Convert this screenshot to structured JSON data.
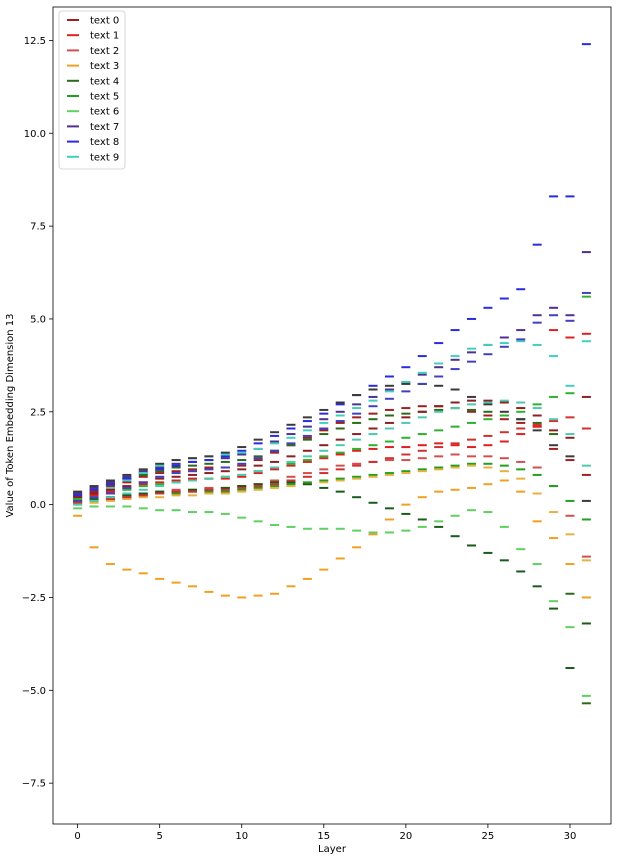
{
  "chart_data": {
    "type": "scatter",
    "marker": "horizontal-dash",
    "xlabel": "Layer",
    "ylabel": "Value of Token Embedding Dimension 13",
    "xlim": [
      -1.5,
      32.5
    ],
    "ylim": [
      -8.6,
      13.4
    ],
    "xticks": [
      0,
      5,
      10,
      15,
      20,
      25,
      30
    ],
    "yticks": [
      -7.5,
      -5.0,
      -2.5,
      0.0,
      2.5,
      5.0,
      7.5,
      10.0,
      12.5
    ],
    "ytick_labels": [
      "−7.5",
      "−5.0",
      "−2.5",
      "0.0",
      "2.5",
      "5.0",
      "7.5",
      "10.0",
      "12.5"
    ],
    "legend_position": "top-left",
    "grid": false,
    "series": [
      {
        "name": "text 0",
        "color": "#a02020",
        "values": [
          0.25,
          0.35,
          0.5,
          0.6,
          0.75,
          0.85,
          0.9,
          0.95,
          1.0,
          1.0,
          1.05,
          1.2,
          1.4,
          1.6,
          1.8,
          2.0,
          2.2,
          2.35,
          2.45,
          2.55,
          2.6,
          2.65,
          2.65,
          2.6,
          2.5,
          2.4,
          2.3,
          2.2,
          2.1,
          1.5,
          1.2,
          0.8
        ]
      },
      {
        "name": "text 1",
        "color": "#e02020",
        "values": [
          0.2,
          0.25,
          0.35,
          0.45,
          0.55,
          0.6,
          0.65,
          0.7,
          0.7,
          0.7,
          0.75,
          0.85,
          0.95,
          1.05,
          1.15,
          1.25,
          1.35,
          1.45,
          1.5,
          1.55,
          1.55,
          1.6,
          1.65,
          1.6,
          1.55,
          1.6,
          1.7,
          1.9,
          2.1,
          4.7,
          4.5,
          4.6
        ]
      },
      {
        "name": "text 2",
        "color": "#d05050",
        "values": [
          0.1,
          0.15,
          0.2,
          0.25,
          0.3,
          0.35,
          0.4,
          0.4,
          0.45,
          0.45,
          0.5,
          0.55,
          0.65,
          0.75,
          0.85,
          0.95,
          1.05,
          1.1,
          1.15,
          1.2,
          1.2,
          1.25,
          1.3,
          1.35,
          1.3,
          1.3,
          1.25,
          1.15,
          1.0,
          0.5,
          -0.3,
          -1.4
        ]
      },
      {
        "name": "text 3",
        "color": "#f0a020",
        "values": [
          -0.3,
          -1.15,
          -1.6,
          -1.75,
          -1.85,
          -2.0,
          -2.1,
          -2.2,
          -2.35,
          -2.45,
          -2.5,
          -2.45,
          -2.4,
          -2.2,
          -2.0,
          -1.75,
          -1.45,
          -1.15,
          -0.8,
          -0.4,
          0.0,
          0.2,
          0.35,
          0.4,
          0.45,
          0.55,
          0.65,
          0.35,
          -0.45,
          -0.9,
          -1.6,
          -2.5
        ]
      },
      {
        "name": "text 4",
        "color": "#2a6a1a",
        "values": [
          0.3,
          0.4,
          0.55,
          0.7,
          0.8,
          0.9,
          1.0,
          1.05,
          1.1,
          1.15,
          1.2,
          1.3,
          1.45,
          1.6,
          1.75,
          1.9,
          2.05,
          2.2,
          2.3,
          2.4,
          2.45,
          2.5,
          2.55,
          2.6,
          2.55,
          2.5,
          2.4,
          2.3,
          2.2,
          1.9,
          -2.4,
          -5.35
        ]
      },
      {
        "name": "text 5",
        "color": "#20a020",
        "values": [
          0.05,
          0.1,
          0.15,
          0.2,
          0.25,
          0.3,
          0.3,
          0.35,
          0.35,
          0.35,
          0.4,
          0.45,
          0.5,
          0.55,
          0.6,
          0.65,
          0.7,
          0.75,
          0.8,
          0.85,
          0.9,
          0.95,
          1.0,
          1.05,
          1.1,
          1.1,
          1.05,
          0.95,
          0.8,
          0.5,
          0.1,
          -0.4
        ]
      },
      {
        "name": "text 6",
        "color": "#60d060",
        "values": [
          -0.1,
          -0.05,
          -0.05,
          -0.05,
          -0.1,
          -0.15,
          -0.15,
          -0.2,
          -0.2,
          -0.25,
          -0.35,
          -0.45,
          -0.55,
          -0.6,
          -0.65,
          -0.65,
          -0.65,
          -0.7,
          -0.75,
          -0.75,
          -0.7,
          -0.6,
          -0.45,
          -0.3,
          -0.15,
          -0.2,
          -0.6,
          -1.2,
          -1.6,
          -2.6,
          -3.3,
          -5.15
        ]
      },
      {
        "name": "text 7",
        "color": "#503090",
        "values": [
          0.3,
          0.45,
          0.6,
          0.75,
          0.9,
          1.0,
          1.1,
          1.15,
          1.2,
          1.25,
          1.35,
          1.5,
          1.7,
          1.9,
          2.1,
          2.3,
          2.5,
          2.7,
          2.9,
          3.1,
          3.3,
          3.5,
          3.7,
          3.9,
          4.1,
          4.3,
          4.5,
          4.7,
          5.1,
          5.3,
          5.1,
          6.8
        ]
      },
      {
        "name": "text 8",
        "color": "#2a2ae0",
        "values": [
          0.25,
          0.4,
          0.55,
          0.7,
          0.85,
          0.95,
          1.05,
          1.15,
          1.2,
          1.3,
          1.45,
          1.65,
          1.85,
          2.05,
          2.25,
          2.45,
          2.7,
          2.95,
          3.2,
          3.45,
          3.7,
          4.0,
          4.35,
          4.7,
          5.0,
          5.3,
          5.55,
          5.8,
          7.0,
          8.3,
          8.3,
          12.4
        ]
      },
      {
        "name": "text 9",
        "color": "#40d0c0",
        "values": [
          0.15,
          0.3,
          0.45,
          0.65,
          0.85,
          1.05,
          1.2,
          1.25,
          1.3,
          1.35,
          1.4,
          1.5,
          1.65,
          1.8,
          2.0,
          2.2,
          2.4,
          2.6,
          2.8,
          3.05,
          3.3,
          3.55,
          3.8,
          4.0,
          4.2,
          4.3,
          4.35,
          4.4,
          4.3,
          4.0,
          3.2,
          4.4
        ]
      },
      {
        "name": "",
        "color": "#3a3a3a",
        "values": [
          0.35,
          0.5,
          0.65,
          0.8,
          0.95,
          1.1,
          1.2,
          1.25,
          1.3,
          1.4,
          1.55,
          1.75,
          1.95,
          2.15,
          2.35,
          2.55,
          2.75,
          2.95,
          3.1,
          3.2,
          3.25,
          3.25,
          3.2,
          3.1,
          2.9,
          2.7,
          2.5,
          2.3,
          2.0,
          1.6,
          1.3,
          0.1
        ]
      },
      {
        "name": "",
        "color": "#8a2020",
        "values": [
          0.2,
          0.3,
          0.4,
          0.5,
          0.6,
          0.7,
          0.75,
          0.8,
          0.85,
          0.9,
          0.95,
          1.05,
          1.15,
          1.3,
          1.45,
          1.6,
          1.75,
          1.9,
          2.05,
          2.2,
          2.35,
          2.5,
          2.65,
          2.75,
          2.8,
          2.8,
          2.75,
          2.6,
          2.4,
          2.0,
          1.8,
          2.9
        ]
      },
      {
        "name": "",
        "color": "#e8b040",
        "values": [
          0.0,
          0.05,
          0.1,
          0.15,
          0.2,
          0.2,
          0.25,
          0.25,
          0.3,
          0.3,
          0.35,
          0.4,
          0.45,
          0.5,
          0.55,
          0.6,
          0.65,
          0.7,
          0.75,
          0.8,
          0.85,
          0.9,
          0.95,
          1.0,
          1.05,
          1.0,
          0.9,
          0.7,
          0.3,
          -0.2,
          -0.8,
          -1.5
        ]
      },
      {
        "name": "",
        "color": "#1a5a1a",
        "values": [
          0.1,
          0.15,
          0.2,
          0.25,
          0.3,
          0.35,
          0.35,
          0.4,
          0.4,
          0.45,
          0.5,
          0.55,
          0.6,
          0.6,
          0.55,
          0.45,
          0.35,
          0.2,
          0.05,
          -0.1,
          -0.25,
          -0.4,
          -0.6,
          -0.85,
          -1.1,
          -1.3,
          -1.5,
          -1.8,
          -2.2,
          -2.8,
          -4.4,
          -3.2
        ]
      },
      {
        "name": "",
        "color": "#30b030",
        "values": [
          0.15,
          0.2,
          0.3,
          0.4,
          0.5,
          0.55,
          0.6,
          0.65,
          0.7,
          0.75,
          0.8,
          0.9,
          1.0,
          1.1,
          1.2,
          1.3,
          1.4,
          1.5,
          1.6,
          1.7,
          1.8,
          1.9,
          2.0,
          2.1,
          2.2,
          2.3,
          2.4,
          2.5,
          2.7,
          2.9,
          3.0,
          5.6
        ]
      },
      {
        "name": "",
        "color": "#4040c0",
        "values": [
          0.1,
          0.2,
          0.3,
          0.45,
          0.6,
          0.75,
          0.85,
          0.9,
          0.95,
          1.0,
          1.1,
          1.25,
          1.45,
          1.65,
          1.85,
          2.05,
          2.25,
          2.45,
          2.65,
          2.85,
          3.05,
          3.25,
          3.45,
          3.65,
          3.85,
          4.05,
          4.25,
          4.45,
          4.9,
          5.1,
          4.95,
          5.7
        ]
      },
      {
        "name": "",
        "color": "#d03030",
        "values": [
          0.05,
          0.1,
          0.15,
          0.2,
          0.25,
          0.3,
          0.35,
          0.35,
          0.4,
          0.4,
          0.45,
          0.5,
          0.55,
          0.65,
          0.75,
          0.85,
          0.95,
          1.05,
          1.15,
          1.25,
          1.35,
          1.45,
          1.55,
          1.65,
          1.75,
          1.85,
          1.95,
          2.05,
          2.15,
          2.25,
          2.35,
          2.05
        ]
      },
      {
        "name": "",
        "color": "#50c8b0",
        "values": [
          0.0,
          0.1,
          0.2,
          0.3,
          0.4,
          0.5,
          0.6,
          0.65,
          0.7,
          0.75,
          0.8,
          0.9,
          1.0,
          1.15,
          1.3,
          1.45,
          1.6,
          1.75,
          1.9,
          2.05,
          2.2,
          2.35,
          2.5,
          2.6,
          2.7,
          2.75,
          2.8,
          2.75,
          2.6,
          2.3,
          1.9,
          1.05
        ]
      }
    ]
  }
}
